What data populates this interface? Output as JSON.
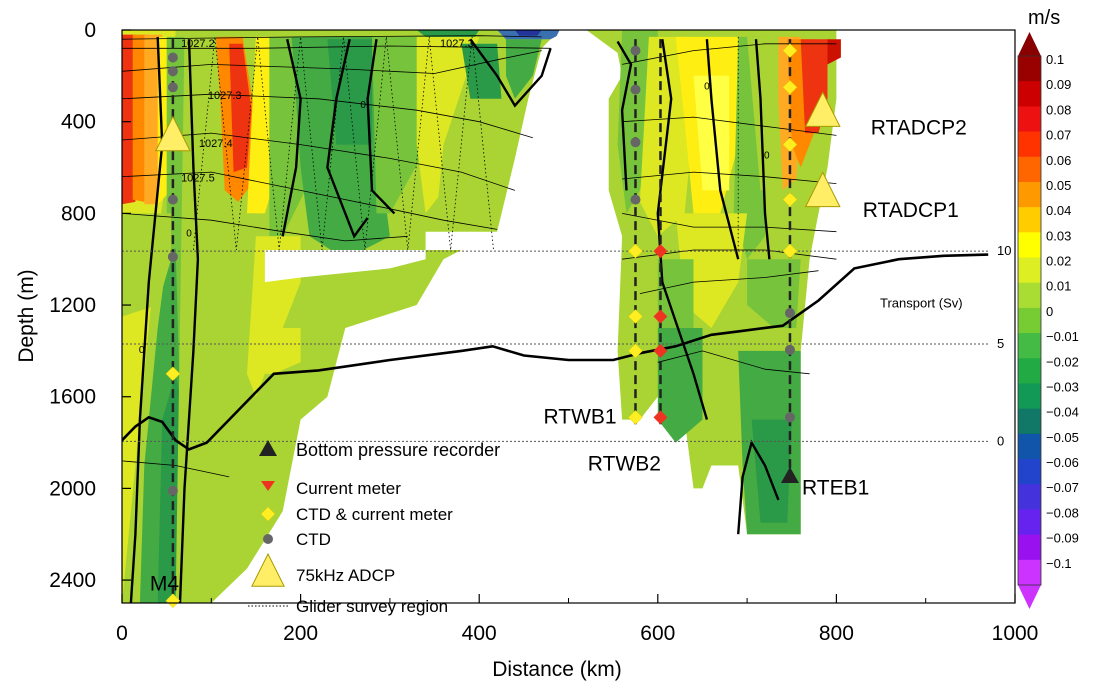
{
  "chart_data": {
    "type": "section",
    "xlabel": "Distance (km)",
    "ylabel": "Depth (m)",
    "xlim": [
      0,
      1000
    ],
    "ylim": [
      2500,
      0
    ],
    "x_ticks": [
      0,
      200,
      400,
      600,
      800,
      1000
    ],
    "y_ticks": [
      0,
      400,
      800,
      1200,
      1600,
      2000,
      2400
    ],
    "colorbar": {
      "unit": "m/s",
      "ticks": [
        "0.1",
        "0.09",
        "0.08",
        "0.07",
        "0.06",
        "0.05",
        "0.04",
        "0.03",
        "0.02",
        "0.01",
        "0",
        "−0.01",
        "−0.02",
        "−0.03",
        "−0.04",
        "−0.05",
        "−0.06",
        "−0.07",
        "−0.08",
        "−0.09",
        "−0.1"
      ],
      "colors": [
        "#990000",
        "#cc0000",
        "#ee1111",
        "#ff3300",
        "#ff6600",
        "#ff9900",
        "#ffcc00",
        "#ffff00",
        "#ddee22",
        "#aadd33",
        "#77cc33",
        "#44bb44",
        "#22aa44",
        "#119955",
        "#117766",
        "#1155aa",
        "#2244cc",
        "#4433dd",
        "#6622ee",
        "#9911ee",
        "#cc33ff"
      ]
    },
    "isopycnal_labels": [
      {
        "label": "1027.2",
        "x": 85,
        "depth": 75
      },
      {
        "label": "1027.3",
        "x": 375,
        "depth": 75
      },
      {
        "label": "1027.3",
        "x": 115,
        "depth": 300
      },
      {
        "label": "1027.4",
        "x": 105,
        "depth": 510
      },
      {
        "label": "1027.5",
        "x": 85,
        "depth": 660
      }
    ],
    "zero_contour_labels": [
      {
        "label": "0",
        "x": 655,
        "depth": 260
      },
      {
        "label": "0",
        "x": 722,
        "depth": 560
      },
      {
        "label": "0",
        "x": 75,
        "depth": 900
      },
      {
        "label": "0",
        "x": 22,
        "depth": 1410
      },
      {
        "label": "0",
        "x": 270,
        "depth": 340
      }
    ],
    "transport_axis": {
      "label": "Transport (Sv)",
      "ticks": [
        {
          "label": "10",
          "value": 10
        },
        {
          "label": "5",
          "value": 5
        },
        {
          "label": "0",
          "value": 0
        }
      ],
      "reference_depths": [
        965,
        1370,
        1795
      ]
    },
    "transport_curve": {
      "x": [
        0,
        15,
        30,
        45,
        60,
        75,
        95,
        130,
        170,
        220,
        300,
        380,
        415,
        450,
        500,
        550,
        580,
        620,
        660,
        690,
        740,
        780,
        820,
        870,
        920,
        970
      ],
      "depth": [
        1790,
        1730,
        1690,
        1710,
        1790,
        1830,
        1800,
        1660,
        1500,
        1485,
        1440,
        1400,
        1380,
        1420,
        1440,
        1440,
        1410,
        1380,
        1330,
        1315,
        1290,
        1180,
        1040,
        1000,
        985,
        980
      ]
    },
    "moorings": [
      {
        "name": "M4",
        "x": 57,
        "cm_depths": [
          1500,
          2490
        ],
        "ctd_depths": [
          120,
          180,
          250,
          740,
          990,
          2010
        ],
        "adcp_depth": 500,
        "bottom": 2500
      },
      {
        "name": "RTWB1",
        "x": 575,
        "cm_depths": [
          965,
          1250,
          1400,
          1690
        ],
        "ctd_depths": [
          90,
          260,
          490,
          740
        ],
        "bottom": 1720
      },
      {
        "name": "RTWB2",
        "x": 603,
        "red_depths": [
          965,
          1250,
          1400,
          1690
        ],
        "bottom": 1720
      },
      {
        "name": "RTEB1",
        "x": 748,
        "cm_depths": [
          90,
          250,
          500,
          740,
          965
        ],
        "ctd_depths": [
          1235,
          1395,
          1690
        ],
        "bpr_depth": 1950,
        "bottom": 1950
      }
    ],
    "adcps": [
      {
        "name": "RTADCP2",
        "x": 778,
        "depth": 350
      },
      {
        "name": "RTADCP1",
        "x": 778,
        "depth": 700
      }
    ],
    "legend": [
      {
        "symbol": "triangle-black",
        "label": "Bottom pressure recorder"
      },
      {
        "symbol": "triangle-red",
        "label": "Current meter"
      },
      {
        "symbol": "diamond-yellow",
        "label": "CTD & current meter"
      },
      {
        "symbol": "circle-gray",
        "label": "CTD"
      },
      {
        "symbol": "adcp-triangle",
        "label": "75kHz ADCP"
      },
      {
        "symbol": "dotted-line",
        "label": "Glider survey region"
      }
    ]
  }
}
